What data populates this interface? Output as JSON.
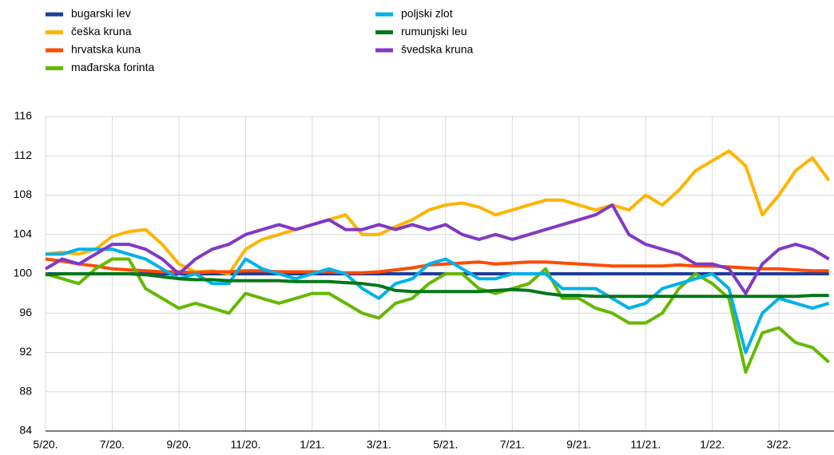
{
  "chart_data": {
    "type": "line",
    "categories": [
      "5/20.",
      null,
      null,
      null,
      "7/20.",
      null,
      null,
      null,
      "9/20.",
      null,
      null,
      null,
      "11/20.",
      null,
      null,
      null,
      "1/21.",
      null,
      null,
      null,
      "3/21.",
      null,
      null,
      null,
      "5/21.",
      null,
      null,
      null,
      "7/21.",
      null,
      null,
      null,
      "9/21.",
      null,
      null,
      null,
      "11/21.",
      null,
      null,
      null,
      "1/22.",
      null,
      null,
      null,
      "3/22.",
      null,
      null,
      null
    ],
    "series": [
      {
        "name": "bugarski lev",
        "color": "#1f3d99",
        "values": [
          100,
          100,
          100,
          100,
          100,
          100,
          100,
          100,
          100,
          100,
          100,
          100,
          100,
          100,
          100,
          100,
          100,
          100,
          100,
          100,
          100,
          100,
          100,
          100,
          100,
          100,
          100,
          100,
          100,
          100,
          100,
          100,
          100,
          100,
          100,
          100,
          100,
          100,
          100,
          100,
          100,
          100,
          100,
          100,
          100,
          100,
          100,
          100
        ]
      },
      {
        "name": "češka kruna",
        "color": "#ffb400",
        "values": [
          102,
          102.2,
          102,
          102.5,
          103.8,
          104.3,
          104.5,
          103,
          101,
          100.2,
          100.3,
          100,
          102.5,
          103.5,
          104,
          104.5,
          105,
          105.5,
          106,
          104,
          104,
          104.8,
          105.5,
          106.5,
          107,
          107.2,
          106.8,
          106,
          106.5,
          107,
          107.5,
          107.5,
          107,
          106.5,
          107,
          106.5,
          108,
          107,
          108.5,
          110.5,
          111.5,
          112.5,
          111,
          106,
          108,
          110.5,
          111.8,
          109.5
        ]
      },
      {
        "name": "hrvatska kuna",
        "color": "#ff4b00",
        "values": [
          101.5,
          101.3,
          101,
          100.8,
          100.5,
          100.4,
          100.3,
          100.2,
          100.2,
          100.1,
          100.2,
          100.2,
          100.3,
          100.3,
          100.2,
          100.2,
          100.2,
          100.2,
          100.1,
          100.1,
          100.2,
          100.4,
          100.6,
          100.9,
          101,
          101.1,
          101.2,
          101,
          101.1,
          101.2,
          101.2,
          101.1,
          101,
          100.9,
          100.8,
          100.8,
          100.8,
          100.8,
          100.9,
          100.8,
          100.8,
          100.7,
          100.6,
          100.5,
          100.5,
          100.4,
          100.3,
          100.3
        ]
      },
      {
        "name": "mađarska forinta",
        "color": "#65b800",
        "values": [
          100,
          99.5,
          99,
          100.5,
          101.5,
          101.5,
          98.5,
          97.5,
          96.5,
          97,
          96.5,
          96,
          98,
          97.5,
          97,
          97.5,
          98,
          98,
          97,
          96,
          95.5,
          97,
          97.5,
          99,
          100,
          100,
          98.5,
          98,
          98.5,
          99,
          100.5,
          97.5,
          97.5,
          96.5,
          96,
          95,
          95,
          96,
          98.5,
          100,
          99,
          97.5,
          90,
          94,
          94.5,
          93,
          92.5,
          91
        ]
      },
      {
        "name": "poljski zlot",
        "color": "#00b1ea",
        "values": [
          102,
          102,
          102.5,
          102.5,
          102.5,
          102,
          101.5,
          100.5,
          99.5,
          100,
          99,
          99,
          101.5,
          100.5,
          100,
          99.5,
          100,
          100.5,
          100,
          98.5,
          97.5,
          99,
          99.5,
          101,
          101.5,
          100.5,
          99.5,
          99.5,
          100,
          100,
          100,
          98.5,
          98.5,
          98.5,
          97.5,
          96.5,
          97,
          98.5,
          99,
          99.5,
          100,
          98.5,
          92,
          96,
          97.5,
          97,
          96.5,
          97
        ]
      },
      {
        "name": "rumunjski leu",
        "color": "#007816",
        "values": [
          99.9,
          100,
          100,
          100,
          100,
          100,
          99.9,
          99.7,
          99.5,
          99.4,
          99.4,
          99.3,
          99.3,
          99.3,
          99.3,
          99.2,
          99.2,
          99.2,
          99.1,
          99,
          98.8,
          98.3,
          98.2,
          98.2,
          98.2,
          98.2,
          98.2,
          98.3,
          98.4,
          98.3,
          98,
          97.8,
          97.8,
          97.7,
          97.7,
          97.7,
          97.7,
          97.7,
          97.7,
          97.7,
          97.7,
          97.7,
          97.7,
          97.7,
          97.7,
          97.7,
          97.8,
          97.8
        ]
      },
      {
        "name": "švedska kruna",
        "color": "#8139c6",
        "values": [
          100.5,
          101.5,
          101,
          102,
          103,
          103,
          102.5,
          101.5,
          100,
          101.5,
          102.5,
          103,
          104,
          104.5,
          105,
          104.5,
          105,
          105.5,
          104.5,
          104.5,
          105,
          104.5,
          105,
          104.5,
          105,
          104,
          103.5,
          104,
          103.5,
          104,
          104.5,
          105,
          105.5,
          106,
          107,
          104,
          103,
          102.5,
          102,
          101,
          101,
          100.5,
          98,
          101,
          102.5,
          103,
          102.5,
          101.5
        ]
      }
    ],
    "ylim": [
      84,
      116
    ],
    "yticks": [
      84,
      88,
      92,
      96,
      100,
      104,
      108,
      112,
      116
    ],
    "grid": true
  }
}
